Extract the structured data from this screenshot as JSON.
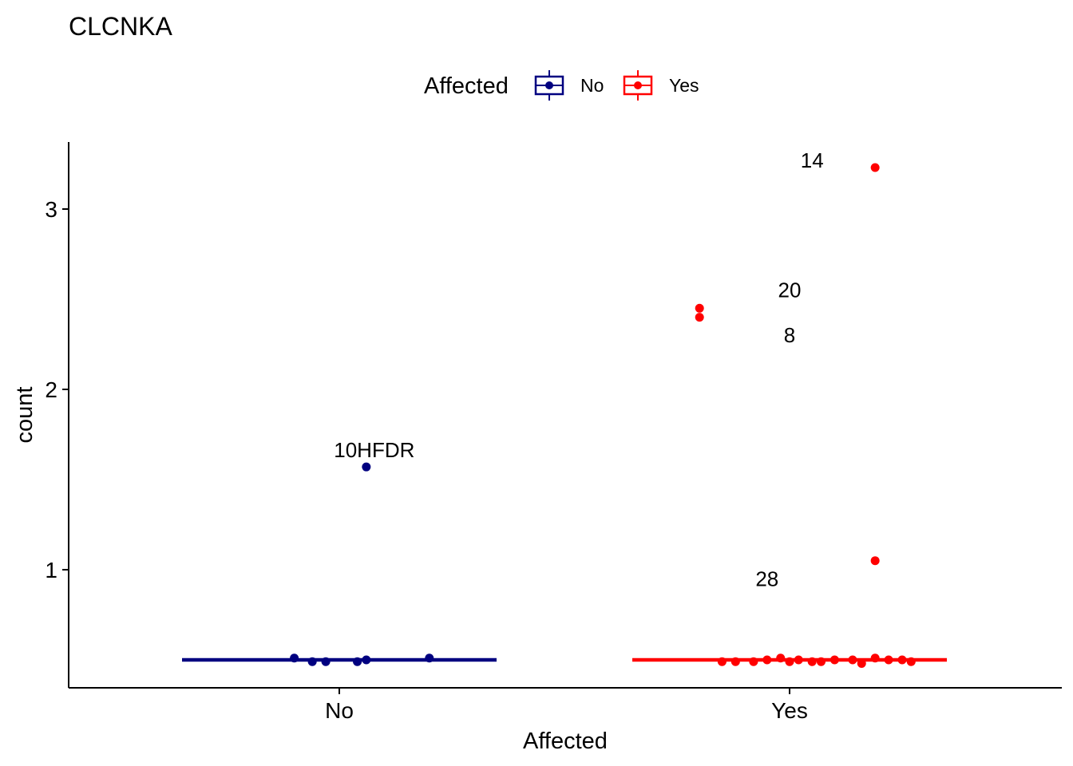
{
  "chart_data": {
    "type": "scatter",
    "title": "CLCNKA",
    "xlabel": "Affected",
    "ylabel": "count",
    "categories": [
      "No",
      "Yes"
    ],
    "y_ticks": [
      "1",
      "2",
      "3"
    ],
    "ylim": [
      0.45,
      3.35
    ],
    "legend": {
      "title": "Affected",
      "position": "top",
      "entries": [
        "No",
        "Yes"
      ]
    },
    "colors": {
      "No": "#000080",
      "Yes": "#ff0000"
    },
    "series": [
      {
        "name": "No",
        "median": 0.5,
        "points": [
          {
            "x": 0.9,
            "y": 0.51
          },
          {
            "x": 0.94,
            "y": 0.49
          },
          {
            "x": 0.97,
            "y": 0.49
          },
          {
            "x": 1.04,
            "y": 0.49
          },
          {
            "x": 1.06,
            "y": 0.5
          },
          {
            "x": 1.2,
            "y": 0.51
          },
          {
            "x": 1.06,
            "y": 1.57,
            "label": "10HFDR"
          }
        ]
      },
      {
        "name": "Yes",
        "median": 0.5,
        "points": [
          {
            "x": 1.85,
            "y": 0.49
          },
          {
            "x": 1.88,
            "y": 0.49
          },
          {
            "x": 1.92,
            "y": 0.49
          },
          {
            "x": 1.95,
            "y": 0.5
          },
          {
            "x": 1.98,
            "y": 0.51
          },
          {
            "x": 2.0,
            "y": 0.49
          },
          {
            "x": 2.02,
            "y": 0.5
          },
          {
            "x": 2.05,
            "y": 0.49
          },
          {
            "x": 2.07,
            "y": 0.49
          },
          {
            "x": 2.1,
            "y": 0.5
          },
          {
            "x": 2.14,
            "y": 0.5
          },
          {
            "x": 2.16,
            "y": 0.48
          },
          {
            "x": 2.19,
            "y": 0.51
          },
          {
            "x": 2.22,
            "y": 0.5
          },
          {
            "x": 2.25,
            "y": 0.5
          },
          {
            "x": 2.27,
            "y": 0.49
          },
          {
            "x": 2.19,
            "y": 1.05
          },
          {
            "x": 1.8,
            "y": 2.4
          },
          {
            "x": 1.8,
            "y": 2.45
          },
          {
            "x": 2.19,
            "y": 3.23
          }
        ]
      }
    ],
    "annotations": [
      {
        "text": "14",
        "x": 2.05,
        "y": 3.27
      },
      {
        "text": "20",
        "x": 2.0,
        "y": 2.55
      },
      {
        "text": "8",
        "x": 2.0,
        "y": 2.3
      },
      {
        "text": "28",
        "x": 1.95,
        "y": 0.95
      }
    ]
  }
}
